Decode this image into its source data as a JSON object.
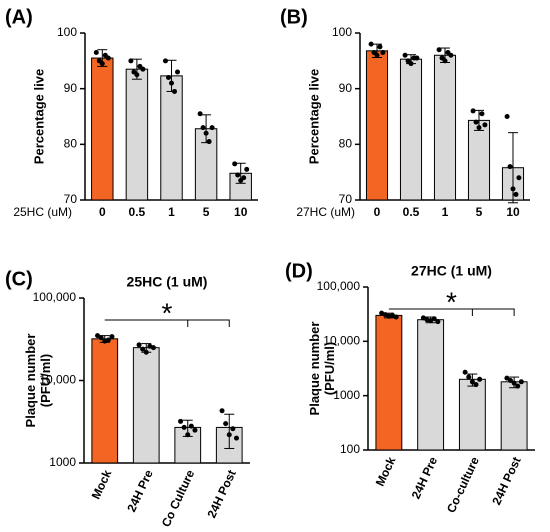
{
  "chart_data": [
    {
      "type": "bar",
      "panel_label": "(A)",
      "y_label": [
        "Percentage live"
      ],
      "x_label": "25HC (uM)",
      "categories": [
        "0",
        "0.5",
        "1",
        "5",
        "10"
      ],
      "values": [
        95.5,
        93.5,
        92.3,
        82.8,
        74.8
      ],
      "errors": [
        1.5,
        1.8,
        2.8,
        2.5,
        1.8
      ],
      "points": [
        [
          96.5,
          95,
          94.5,
          96,
          95.5
        ],
        [
          95,
          93,
          92.5,
          94,
          93.5
        ],
        [
          95,
          92,
          91,
          89.5,
          93
        ],
        [
          85.5,
          83,
          82,
          80.5,
          83
        ],
        [
          76.5,
          74.5,
          73.5,
          74,
          75.5
        ]
      ],
      "colors": [
        "#f26522",
        "#d9d9d9",
        "#d9d9d9",
        "#d9d9d9",
        "#d9d9d9"
      ],
      "ylim": [
        70,
        100
      ],
      "yticks": [
        70,
        80,
        90,
        100
      ],
      "log_scale": false
    },
    {
      "type": "bar",
      "panel_label": "(B)",
      "y_label": [
        "Percentage live"
      ],
      "x_label": "27HC (uM)",
      "categories": [
        "0",
        "0.5",
        "1",
        "5",
        "10"
      ],
      "values": [
        96.8,
        95.3,
        96.0,
        84.3,
        75.8
      ],
      "errors": [
        1.2,
        0.8,
        1.3,
        1.8,
        6.3
      ],
      "points": [
        [
          98,
          96.5,
          96,
          97.5,
          96.5
        ],
        [
          96,
          95,
          94.5,
          95.5,
          95.5
        ],
        [
          97,
          95.5,
          95,
          96.5,
          96
        ],
        [
          86,
          84,
          83,
          85.5,
          83.5
        ],
        [
          85,
          76,
          72,
          71,
          74
        ]
      ],
      "colors": [
        "#f26522",
        "#d9d9d9",
        "#d9d9d9",
        "#d9d9d9",
        "#d9d9d9"
      ],
      "ylim": [
        70,
        100
      ],
      "yticks": [
        70,
        80,
        90,
        100
      ],
      "log_scale": false
    },
    {
      "type": "bar",
      "panel_label": "(C)",
      "title": "25HC (1 uM)",
      "y_label": [
        "Plaque number",
        "(PFU/ml)"
      ],
      "annotation": "*",
      "categories": [
        "Mock",
        "24H Pre",
        "Co Culture",
        "24H Post"
      ],
      "values": [
        32000,
        25000,
        2700,
        2700
      ],
      "errors": [
        3000,
        3000,
        600,
        1200
      ],
      "points": [
        [
          35000,
          33000,
          30000,
          31000,
          34000
        ],
        [
          27000,
          24000,
          22000,
          26000,
          25000
        ],
        [
          3200,
          2700,
          2200,
          2800,
          2500
        ],
        [
          4300,
          3000,
          2200,
          2600,
          2000
        ]
      ],
      "colors": [
        "#f26522",
        "#d9d9d9",
        "#d9d9d9",
        "#d9d9d9"
      ],
      "ylim": [
        1000,
        100000
      ],
      "yticks": [
        1000,
        {
          "value": 10000,
          "label": "10,000"
        },
        {
          "value": 100000,
          "label": "100,000"
        }
      ],
      "log_scale": true
    },
    {
      "type": "bar",
      "panel_label": "(D)",
      "title": "27HC (1 uM)",
      "y_label": [
        "Plaque number",
        "(PFU/ml)"
      ],
      "annotation": "*",
      "categories": [
        "Mock",
        "24H Pre",
        "Co-culture",
        "24H Post"
      ],
      "values": [
        30000,
        25000,
        2000,
        1800
      ],
      "errors": [
        3000,
        3000,
        500,
        400
      ],
      "points": [
        [
          33000,
          31000,
          29000,
          30000,
          28000
        ],
        [
          27000,
          25000,
          24000,
          26000,
          23000
        ],
        [
          2700,
          2200,
          1800,
          1600,
          2000
        ],
        [
          2100,
          1900,
          1700,
          1500,
          1800
        ]
      ],
      "colors": [
        "#f26522",
        "#d9d9d9",
        "#d9d9d9",
        "#d9d9d9"
      ],
      "ylim": [
        100,
        100000
      ],
      "yticks": [
        100,
        1000,
        {
          "value": 10000,
          "label": "10,000"
        },
        {
          "value": 100000,
          "label": "100,000"
        }
      ],
      "log_scale": true
    }
  ]
}
